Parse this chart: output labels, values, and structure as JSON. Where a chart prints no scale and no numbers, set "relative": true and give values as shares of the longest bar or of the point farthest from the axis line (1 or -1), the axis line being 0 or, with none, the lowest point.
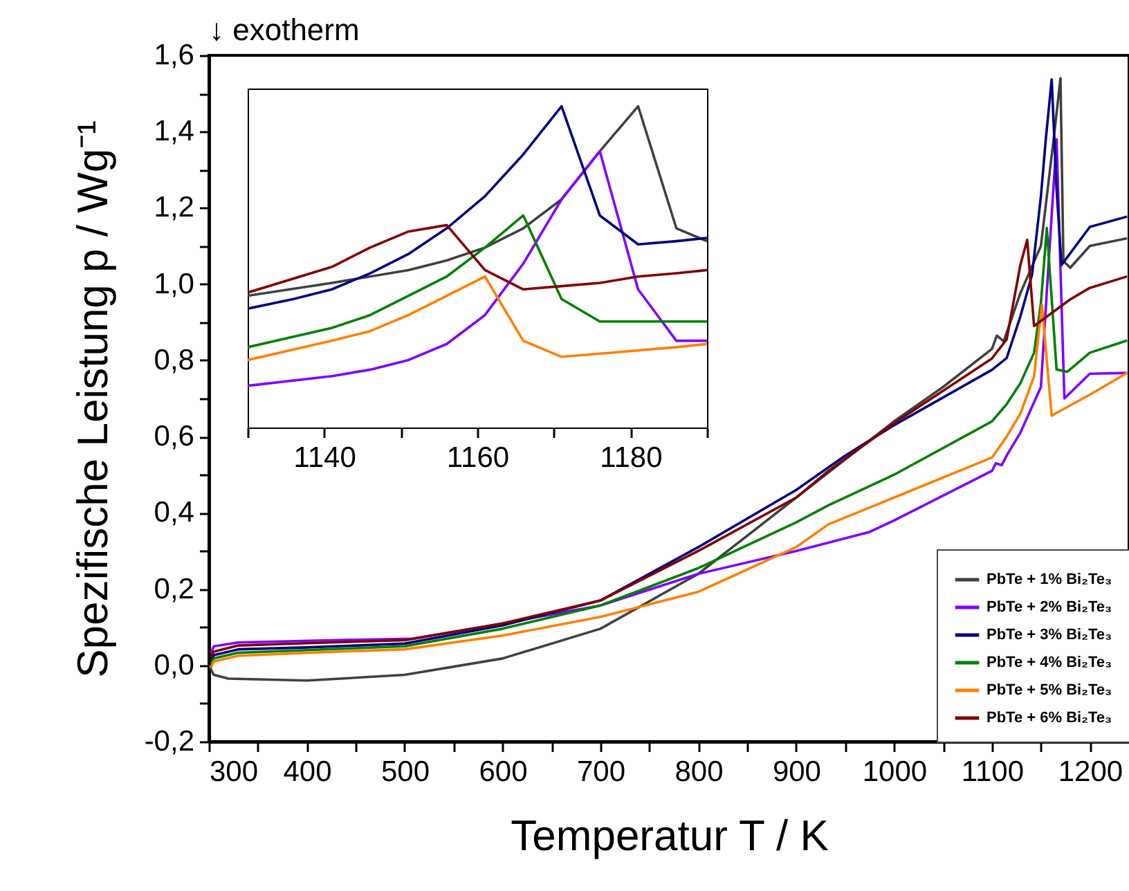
{
  "chart_data": [
    {
      "type": "line",
      "xlabel": "Temperatur T / K",
      "ylabel": "Spezifische Leistung p / Wg⁻¹",
      "annotations": [
        "↓ exotherm"
      ],
      "legend": "bottom right",
      "xlim": [
        300,
        1240
      ],
      "ylim": [
        -0.2,
        1.6
      ],
      "xticks": [
        300,
        {
          "value": 350,
          "label": null
        },
        400,
        {
          "value": 450,
          "label": null
        },
        500,
        {
          "value": 550,
          "label": null
        },
        600,
        {
          "value": 650,
          "label": null
        },
        700,
        {
          "value": 750,
          "label": null
        },
        800,
        {
          "value": 850,
          "label": null
        },
        900,
        {
          "value": 950,
          "label": null
        },
        1000,
        {
          "value": 1050,
          "label": null
        },
        1100,
        {
          "value": 1150,
          "label": null
        },
        1200
      ],
      "yticks": [
        {
          "value": -0.2,
          "label": "-0,2"
        },
        {
          "value": -0.1,
          "label": null
        },
        {
          "value": 0,
          "label": "0,0"
        },
        {
          "value": 0.1,
          "label": null
        },
        {
          "value": 0.2,
          "label": "0,2"
        },
        {
          "value": 0.3,
          "label": null
        },
        {
          "value": 0.4,
          "label": "0,4"
        },
        {
          "value": 0.5,
          "label": null
        },
        {
          "value": 0.6,
          "label": "0,6"
        },
        {
          "value": 0.7,
          "label": null
        },
        {
          "value": 0.8,
          "label": "0,8"
        },
        {
          "value": 0.9,
          "label": null
        },
        {
          "value": 1.0,
          "label": "1,0"
        },
        {
          "value": 1.1,
          "label": null
        },
        {
          "value": 1.2,
          "label": "1,2"
        },
        {
          "value": 1.3,
          "label": null
        },
        {
          "value": 1.4,
          "label": "1,4"
        },
        {
          "value": 1.5,
          "label": null
        },
        {
          "value": 1.6,
          "label": "1,6"
        }
      ],
      "series": [
        {
          "name": "PbTe + 1% Bi₂Te₃",
          "color": "#404040",
          "x": [
            300,
            305,
            320,
            400,
            500,
            600,
            700,
            800,
            900,
            1000,
            1050,
            1100,
            1105,
            1112,
            1129,
            1150,
            1163,
            1170,
            1173,
            1180,
            1200,
            1238
          ],
          "values": [
            0.0,
            -0.025,
            -0.035,
            -0.04,
            -0.025,
            0.018,
            0.096,
            0.24,
            0.44,
            0.64,
            0.73,
            0.83,
            0.865,
            0.85,
            0.976,
            1.1,
            1.38,
            1.54,
            1.06,
            1.043,
            1.1,
            1.12
          ]
        },
        {
          "name": "PbTe + 2% Bi₂Te₃",
          "color": "#8000ff",
          "x": [
            302,
            305,
            330,
            410,
            508,
            600,
            700,
            800,
            900,
            975,
            1000,
            1100,
            1104,
            1110,
            1115,
            1129,
            1150,
            1157,
            1166,
            1174,
            1200,
            1238
          ],
          "values": [
            0.032,
            0.05,
            0.06,
            0.065,
            0.07,
            0.11,
            0.157,
            0.24,
            0.3,
            0.35,
            0.38,
            0.51,
            0.53,
            0.525,
            0.55,
            0.61,
            0.73,
            1.02,
            1.38,
            0.7,
            0.765,
            0.767
          ]
        },
        {
          "name": "PbTe + 3% Bi₂Te₃",
          "color": "#000080",
          "x": [
            302,
            305,
            330,
            400,
            500,
            600,
            700,
            800,
            900,
            950,
            1000,
            1100,
            1115,
            1129,
            1141,
            1150,
            1155,
            1161,
            1166,
            1171,
            1200,
            1238
          ],
          "values": [
            0.012,
            0.027,
            0.042,
            0.047,
            0.057,
            0.105,
            0.17,
            0.31,
            0.46,
            0.55,
            0.63,
            0.775,
            0.806,
            0.915,
            1.025,
            1.23,
            1.38,
            1.537,
            1.25,
            1.05,
            1.15,
            1.177
          ]
        },
        {
          "name": "PbTe + 4% Bi₂Te₃",
          "color": "#008000",
          "x": [
            302,
            305,
            330,
            400,
            500,
            600,
            700,
            800,
            900,
            933,
            1000,
            1100,
            1115,
            1129,
            1143,
            1150,
            1156,
            1166,
            1177,
            1200,
            1238
          ],
          "values": [
            0.004,
            0.018,
            0.033,
            0.04,
            0.05,
            0.096,
            0.157,
            0.255,
            0.375,
            0.42,
            0.5,
            0.64,
            0.685,
            0.74,
            0.82,
            0.95,
            1.147,
            0.776,
            0.77,
            0.82,
            0.852
          ]
        },
        {
          "name": "PbTe + 5% Bi₂Te₃",
          "color": "#ff8000",
          "x": [
            302,
            305,
            330,
            400,
            500,
            600,
            700,
            800,
            900,
            933,
            1000,
            1100,
            1115,
            1129,
            1143,
            1151,
            1161,
            1200,
            1238
          ],
          "values": [
            -0.006,
            0.01,
            0.025,
            0.033,
            0.042,
            0.078,
            0.127,
            0.193,
            0.31,
            0.37,
            0.44,
            0.545,
            0.6,
            0.66,
            0.758,
            0.946,
            0.655,
            0.71,
            0.767
          ]
        },
        {
          "name": "PbTe + 6% Bi₂Te₃",
          "color": "#800000",
          "x": [
            302,
            305,
            330,
            400,
            500,
            600,
            700,
            800,
            900,
            933,
            1000,
            1100,
            1115,
            1129,
            1136,
            1143,
            1180,
            1200,
            1238
          ],
          "values": [
            0.022,
            0.036,
            0.052,
            0.058,
            0.066,
            0.11,
            0.17,
            0.3,
            0.44,
            0.51,
            0.635,
            0.805,
            0.855,
            1.05,
            1.116,
            0.89,
            0.96,
            0.99,
            1.02
          ]
        }
      ]
    },
    {
      "type": "line",
      "relative": true,
      "tick_labels": "x",
      "xlim": [
        1130,
        1190
      ],
      "xticks": [
        {
          "value": 1130,
          "label": null
        },
        1140,
        {
          "value": 1150,
          "label": null
        },
        1160,
        {
          "value": 1170,
          "label": null
        },
        1180,
        {
          "value": 1190,
          "label": null
        }
      ],
      "series": [
        {
          "color": "#404040",
          "x": [
            1130,
            1141,
            1151,
            1156,
            1161,
            1166,
            1171,
            1176,
            1181,
            1186,
            1190
          ],
          "values": [
            0.41,
            0.45,
            0.49,
            0.52,
            0.56,
            0.62,
            0.71,
            0.86,
            1,
            0.62,
            0.58
          ]
        },
        {
          "color": "#8000ff",
          "x": [
            1130,
            1141,
            1146,
            1151,
            1156,
            1161,
            1166,
            1171,
            1176,
            1181,
            1186,
            1190
          ],
          "values": [
            0.13,
            0.16,
            0.18,
            0.21,
            0.26,
            0.35,
            0.51,
            0.71,
            0.86,
            0.43,
            0.27,
            0.27
          ]
        },
        {
          "color": "#000080",
          "x": [
            1130,
            1136,
            1141,
            1146,
            1151,
            1156,
            1161,
            1166,
            1171,
            1176,
            1181,
            1186,
            1190
          ],
          "values": [
            0.37,
            0.4,
            0.43,
            0.48,
            0.54,
            0.62,
            0.72,
            0.85,
            1,
            0.66,
            0.57,
            0.58,
            0.59
          ]
        },
        {
          "color": "#008000",
          "x": [
            1130,
            1141,
            1146,
            1151,
            1156,
            1161,
            1166,
            1171,
            1176,
            1181,
            1186,
            1190
          ],
          "values": [
            0.25,
            0.31,
            0.35,
            0.41,
            0.47,
            0.56,
            0.66,
            0.4,
            0.33,
            0.33,
            0.33,
            0.33
          ]
        },
        {
          "color": "#ff8000",
          "x": [
            1130,
            1141,
            1146,
            1151,
            1156,
            1161,
            1166,
            1171,
            1176,
            1181,
            1186,
            1190
          ],
          "values": [
            0.21,
            0.27,
            0.3,
            0.35,
            0.41,
            0.47,
            0.27,
            0.22,
            0.23,
            0.24,
            0.25,
            0.26
          ]
        },
        {
          "color": "#800000",
          "x": [
            1130,
            1141,
            1146,
            1151,
            1156,
            1161,
            1166,
            1171,
            1176,
            1181,
            1186,
            1190
          ],
          "values": [
            0.42,
            0.5,
            0.56,
            0.61,
            0.63,
            0.49,
            0.43,
            0.44,
            0.45,
            0.47,
            0.48,
            0.49
          ]
        }
      ]
    }
  ]
}
